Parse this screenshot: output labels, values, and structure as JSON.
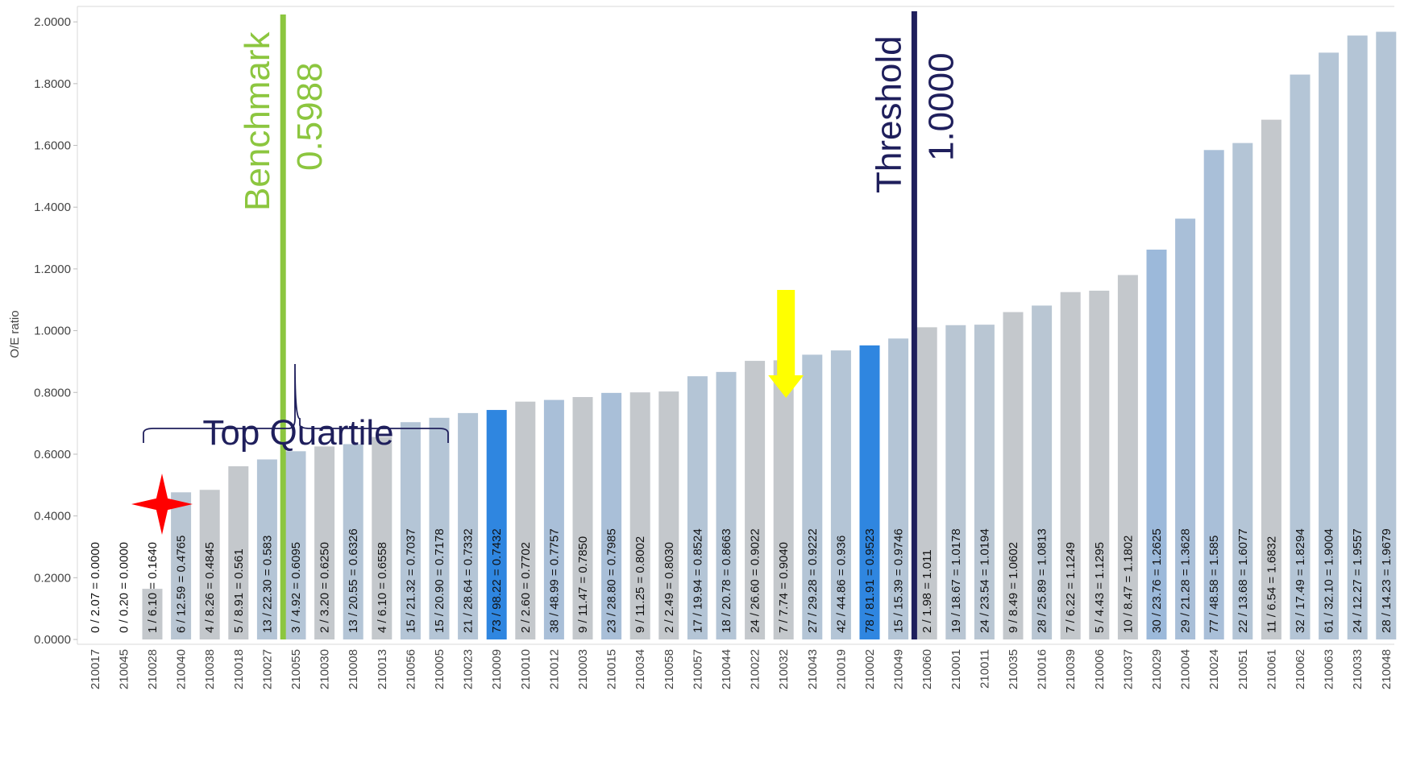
{
  "chart_data": {
    "type": "bar",
    "ylabel": "O/E ratio",
    "ylim": [
      0,
      2.05
    ],
    "yticks": [
      "0.0000",
      "0.2000",
      "0.4000",
      "0.6000",
      "0.8000",
      "1.0000",
      "1.2000",
      "1.4000",
      "1.6000",
      "1.8000",
      "2.0000"
    ],
    "categories": [
      "210017",
      "210045",
      "210028",
      "210040",
      "210038",
      "210018",
      "210027",
      "210055",
      "210030",
      "210008",
      "210013",
      "210056",
      "210005",
      "210023",
      "210009",
      "210010",
      "210012",
      "210003",
      "210015",
      "210034",
      "210058",
      "210057",
      "210044",
      "210022",
      "210032",
      "210043",
      "210019",
      "210002",
      "210049",
      "210060",
      "210001",
      "210011",
      "210035",
      "210016",
      "210039",
      "210006",
      "210037",
      "210029",
      "210004",
      "210024",
      "210051",
      "210061",
      "210062",
      "210063",
      "210033",
      "210048"
    ],
    "values": [
      0.0,
      0.0,
      0.164,
      0.4765,
      0.4845,
      0.561,
      0.583,
      0.6095,
      0.625,
      0.6326,
      0.6558,
      0.7037,
      0.7178,
      0.7332,
      0.7432,
      0.7702,
      0.7757,
      0.785,
      0.7985,
      0.8002,
      0.803,
      0.8524,
      0.8663,
      0.9022,
      0.904,
      0.9222,
      0.936,
      0.9523,
      0.9746,
      1.011,
      1.0178,
      1.0194,
      1.0602,
      1.0813,
      1.1249,
      1.1295,
      1.1802,
      1.2625,
      1.3628,
      1.585,
      1.6077,
      1.6832,
      1.8294,
      1.9004,
      1.9557,
      1.9679
    ],
    "bar_labels": [
      "0 / 2.07 = 0.0000",
      "0 / 0.20 = 0.0000",
      "1 / 6.10 = 0.1640",
      "6 / 12.59 = 0.4765",
      "4 / 8.26 = 0.4845",
      "5 / 8.91 = 0.561",
      "13 / 22.30 = 0.583",
      "3 / 4.92 = 0.6095",
      "2 / 3.20 = 0.6250",
      "13 / 20.55 = 0.6326",
      "4 / 6.10 = 0.6558",
      "15 / 21.32 = 0.7037",
      "15 / 20.90 = 0.7178",
      "21 / 28.64 = 0.7332",
      "73 / 98.22 = 0.7432",
      "2 / 2.60 = 0.7702",
      "38 / 48.99 = 0.7757",
      "9 / 11.47 = 0.7850",
      "23 / 28.80 = 0.7985",
      "9 / 11.25 = 0.8002",
      "2 / 2.49 = 0.8030",
      "17 / 19.94 = 0.8524",
      "18 / 20.78 = 0.8663",
      "24 / 26.60 = 0.9022",
      "7 / 7.74 = 0.9040",
      "27 / 29.28 = 0.9222",
      "42 / 44.86 = 0.936",
      "78 / 81.91 = 0.9523",
      "15 / 15.39 = 0.9746",
      "2 / 1.98 = 1.011",
      "19 / 18.67 = 1.0178",
      "24 / 23.54 = 1.0194",
      "9 / 8.49 = 1.0602",
      "28 / 25.89 = 1.0813",
      "7 / 6.22 = 1.1249",
      "5 / 4.43 = 1.1295",
      "10 / 8.47 = 1.1802",
      "30 / 23.76 = 1.2625",
      "29 / 21.28 = 1.3628",
      "77 / 48.58 = 1.585",
      "22 / 13.68 = 1.6077",
      "11 / 6.54 = 1.6832",
      "32 / 17.49 = 1.8294",
      "61 / 32.10 = 1.9004",
      "24 / 12.27 = 1.9557",
      "28 / 14.23 = 1.9679"
    ],
    "bar_colors": [
      "#c4c8cc",
      "#c4c8cc",
      "#c4c8cc",
      "#b9c6d3",
      "#c4c8cc",
      "#c4c8cc",
      "#b4c5d6",
      "#b4c5d6",
      "#c4c8cc",
      "#b4c5d6",
      "#c4c8cc",
      "#b4c5d6",
      "#b4c5d6",
      "#b4c5d6",
      "#2f86e0",
      "#c4c8cc",
      "#a9bfd8",
      "#c4c8cc",
      "#a9bfd8",
      "#c4c8cc",
      "#c4c8cc",
      "#b4c5d6",
      "#b4c5d6",
      "#c4c8cc",
      "#c4c8cc",
      "#b4c5d6",
      "#b4c5d6",
      "#2f86e0",
      "#b4c5d6",
      "#c4c8cc",
      "#b9c6d3",
      "#b9c6d3",
      "#c4c8cc",
      "#b9c6d3",
      "#c4c8cc",
      "#c4c8cc",
      "#c4c8cc",
      "#9cb9da",
      "#a9bfd8",
      "#a9bfd8",
      "#b4c5d6",
      "#c4c8cc",
      "#b4c5d6",
      "#b4c5d6",
      "#b4c5d6",
      "#b4c5d6"
    ],
    "highlight_label_color": "#cfe4ff",
    "reference_lines": [
      {
        "label": "Benchmark",
        "value_text": "0.5988",
        "x_after_category": "210027",
        "color": "#8cc63f"
      },
      {
        "label": "Threshold",
        "value_text": "1.0000",
        "x_after_category": "210049",
        "color": "#1f1f5c"
      }
    ],
    "annotations": {
      "bracket_text": "Top Quartile",
      "bracket_color": "#1f1f5c",
      "star_color": "#ff0000",
      "star_category": "210028",
      "arrow_color": "#ffff00",
      "arrow_category": "210032"
    },
    "grid": false,
    "legend": "none"
  }
}
